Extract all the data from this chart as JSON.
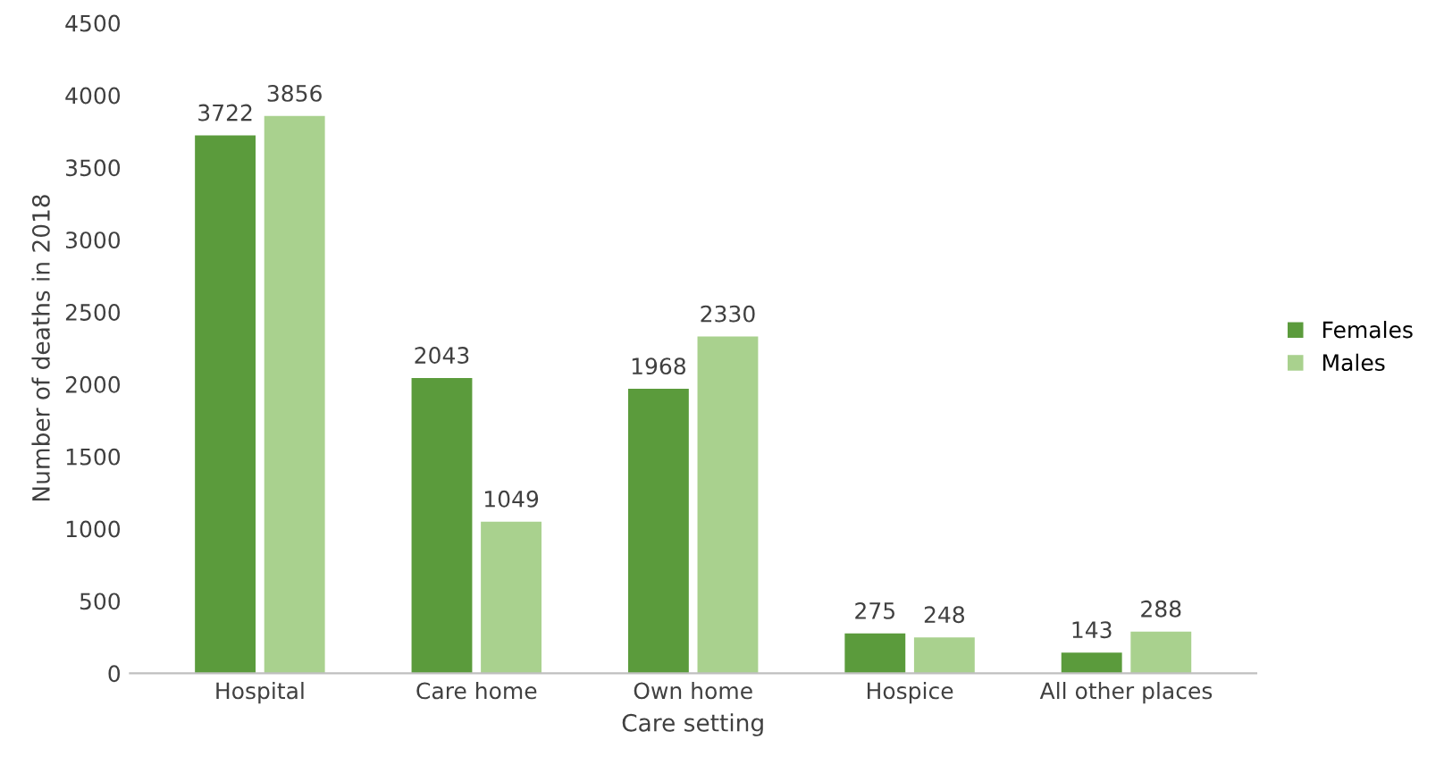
{
  "chart_data": {
    "type": "bar",
    "xlabel": "Care setting",
    "ylabel": "Number of deaths in 2018",
    "categories": [
      "Hospital",
      "Care home",
      "Own home",
      "Hospice",
      "All other places"
    ],
    "series": [
      {
        "name": "Females",
        "color": "#5b9b3c",
        "values": [
          3722,
          2043,
          1968,
          275,
          143
        ]
      },
      {
        "name": "Males",
        "color": "#a9d18e",
        "values": [
          3856,
          1049,
          2330,
          248,
          288
        ]
      }
    ],
    "ylim": [
      0,
      4500
    ],
    "yticks": [
      0,
      500,
      1000,
      1500,
      2000,
      2500,
      3000,
      3500,
      4000,
      4500
    ],
    "data_labels": true,
    "grid": false,
    "legend": "right"
  }
}
